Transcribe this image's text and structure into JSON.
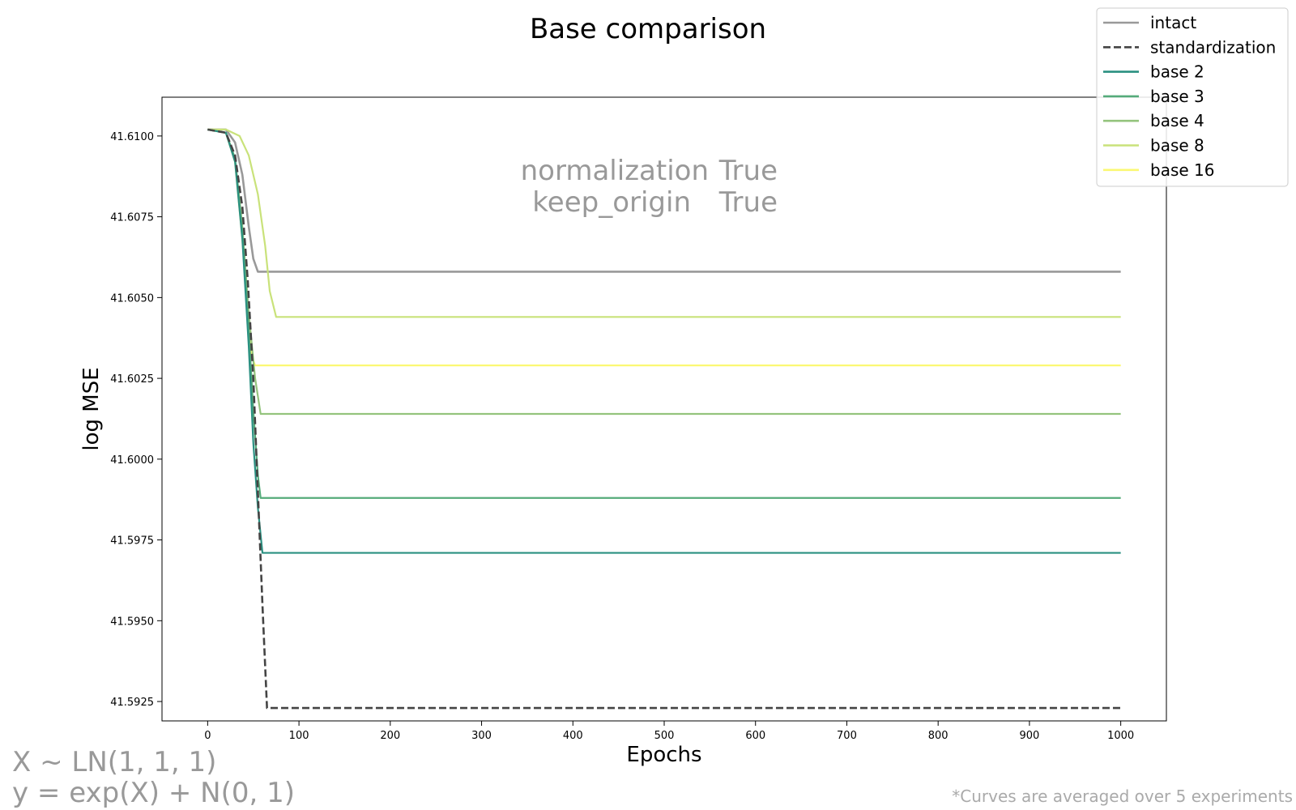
{
  "chart_data": {
    "type": "line",
    "title": "Base comparison",
    "xlabel": "Epochs",
    "ylabel": "log MSE",
    "xlim": [
      -50,
      1050
    ],
    "ylim": [
      41.5919,
      41.6112
    ],
    "xticks": [
      0,
      100,
      200,
      300,
      400,
      500,
      600,
      700,
      800,
      900,
      1000
    ],
    "yticks": [
      41.5925,
      41.595,
      41.5975,
      41.6,
      41.6025,
      41.605,
      41.6075,
      41.61
    ],
    "ytick_labels": [
      "41.5925",
      "41.5950",
      "41.5975",
      "41.6000",
      "41.6025",
      "41.6050",
      "41.6075",
      "41.6100"
    ],
    "grid": false,
    "legend_position": "top-right",
    "series": [
      {
        "name": "intact",
        "color": "#999999",
        "dash": "solid",
        "points": [
          [
            0,
            41.6102
          ],
          [
            20,
            41.6102
          ],
          [
            30,
            41.6098
          ],
          [
            38,
            41.6088
          ],
          [
            45,
            41.6072
          ],
          [
            50,
            41.6062
          ],
          [
            55,
            41.6058
          ],
          [
            1000,
            41.6058
          ]
        ]
      },
      {
        "name": "standardization",
        "color": "#444444",
        "dash": "dashed",
        "points": [
          [
            0,
            41.6102
          ],
          [
            20,
            41.6101
          ],
          [
            30,
            41.6094
          ],
          [
            38,
            41.6078
          ],
          [
            44,
            41.6055
          ],
          [
            50,
            41.6025
          ],
          [
            55,
            41.599
          ],
          [
            60,
            41.5955
          ],
          [
            65,
            41.5923
          ],
          [
            1000,
            41.5923
          ]
        ]
      },
      {
        "name": "base 2",
        "color": "#2a9081",
        "dash": "solid",
        "points": [
          [
            0,
            41.6102
          ],
          [
            20,
            41.6101
          ],
          [
            30,
            41.6092
          ],
          [
            38,
            41.6068
          ],
          [
            45,
            41.6035
          ],
          [
            50,
            41.6005
          ],
          [
            55,
            41.5985
          ],
          [
            60,
            41.5971
          ],
          [
            1000,
            41.5971
          ]
        ]
      },
      {
        "name": "base 3",
        "color": "#55ab7a",
        "dash": "solid",
        "points": [
          [
            0,
            41.6102
          ],
          [
            20,
            41.6101
          ],
          [
            30,
            41.6093
          ],
          [
            38,
            41.607
          ],
          [
            45,
            41.604
          ],
          [
            50,
            41.6015
          ],
          [
            55,
            41.5995
          ],
          [
            58,
            41.5988
          ],
          [
            1000,
            41.5988
          ]
        ]
      },
      {
        "name": "base 4",
        "color": "#94c47d",
        "dash": "solid",
        "points": [
          [
            0,
            41.6102
          ],
          [
            20,
            41.6101
          ],
          [
            30,
            41.6093
          ],
          [
            38,
            41.6072
          ],
          [
            45,
            41.6045
          ],
          [
            52,
            41.6025
          ],
          [
            58,
            41.6014
          ],
          [
            1000,
            41.6014
          ]
        ]
      },
      {
        "name": "base 8",
        "color": "#c9e27a",
        "dash": "solid",
        "points": [
          [
            0,
            41.6102
          ],
          [
            20,
            41.6102
          ],
          [
            35,
            41.61
          ],
          [
            45,
            41.6094
          ],
          [
            55,
            41.6082
          ],
          [
            63,
            41.6066
          ],
          [
            68,
            41.6052
          ],
          [
            75,
            41.6044
          ],
          [
            1000,
            41.6044
          ]
        ]
      },
      {
        "name": "base 16",
        "color": "#fbf873",
        "dash": "solid",
        "points": [
          [
            0,
            41.6102
          ],
          [
            20,
            41.6101
          ],
          [
            30,
            41.6092
          ],
          [
            38,
            41.6068
          ],
          [
            44,
            41.6045
          ],
          [
            48,
            41.6032
          ],
          [
            52,
            41.6029
          ],
          [
            1000,
            41.6029
          ]
        ]
      }
    ]
  },
  "annotations": {
    "normalization_label": "normalization",
    "normalization_value": "True",
    "keep_origin_label": "keep_origin",
    "keep_origin_value": "True",
    "formula_line_1": "X ~ LN(1, 1, 1)",
    "formula_line_2": "y = exp(X) + N(0, 1)",
    "footnote": "*Curves are averaged over 5 experiments"
  }
}
